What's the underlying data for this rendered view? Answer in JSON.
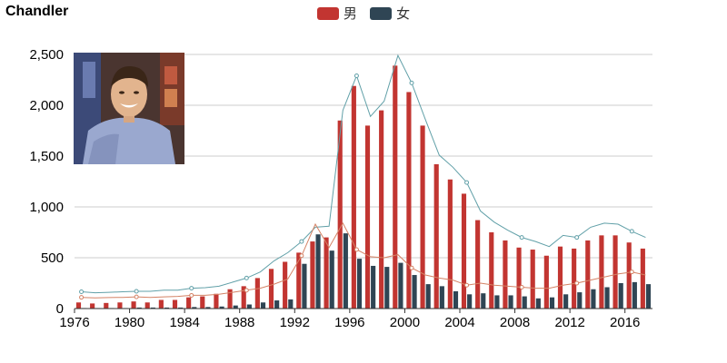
{
  "chart_data": {
    "type": "bar",
    "title": "Chandler",
    "xlabel": "",
    "ylabel": "",
    "x_range": [
      1976,
      2017
    ],
    "ylim": [
      0,
      2500
    ],
    "y_ticks": [
      "0",
      "500",
      "1,000",
      "1,500",
      "2,000",
      "2,500"
    ],
    "y_tick_values": [
      0,
      500,
      1000,
      1500,
      2000,
      2500
    ],
    "x_ticks": [
      "1976",
      "1980",
      "1984",
      "1988",
      "1992",
      "1996",
      "2000",
      "2004",
      "2008",
      "2012",
      "2016"
    ],
    "x_tick_values": [
      1976,
      1980,
      1984,
      1988,
      1992,
      1996,
      2000,
      2004,
      2008,
      2012,
      2016
    ],
    "grid": true,
    "legend_position": "top-center",
    "years": [
      1976,
      1977,
      1978,
      1979,
      1980,
      1981,
      1982,
      1983,
      1984,
      1985,
      1986,
      1987,
      1988,
      1989,
      1990,
      1991,
      1992,
      1993,
      1994,
      1995,
      1996,
      1997,
      1998,
      1999,
      2000,
      2001,
      2002,
      2003,
      2004,
      2005,
      2006,
      2007,
      2008,
      2009,
      2010,
      2011,
      2012,
      2013,
      2014,
      2015,
      2016,
      2017
    ],
    "series": [
      {
        "name": "男",
        "type": "bar",
        "color": "#c23531",
        "values": [
          60,
          50,
          55,
          60,
          70,
          60,
          85,
          85,
          110,
          120,
          145,
          190,
          220,
          300,
          390,
          460,
          550,
          660,
          700,
          1850,
          2190,
          1800,
          1950,
          2390,
          2130,
          1800,
          1420,
          1270,
          1130,
          870,
          750,
          670,
          600,
          580,
          520,
          610,
          590,
          670,
          720,
          720,
          650,
          590
        ]
      },
      {
        "name": "女",
        "type": "bar",
        "color": "#2f4554",
        "values": [
          5,
          5,
          5,
          5,
          10,
          10,
          10,
          10,
          15,
          15,
          20,
          30,
          40,
          60,
          80,
          90,
          440,
          730,
          570,
          740,
          490,
          420,
          410,
          450,
          330,
          240,
          220,
          170,
          140,
          150,
          130,
          130,
          120,
          100,
          110,
          140,
          160,
          190,
          210,
          250,
          260,
          240
        ]
      },
      {
        "name": "",
        "type": "line",
        "color": "#61a0a8",
        "values": [
          165,
          155,
          160,
          165,
          170,
          170,
          180,
          180,
          200,
          205,
          220,
          260,
          300,
          360,
          470,
          550,
          660,
          800,
          810,
          1950,
          2290,
          1890,
          2040,
          2490,
          2220,
          1860,
          1510,
          1390,
          1240,
          960,
          850,
          770,
          700,
          660,
          610,
          720,
          700,
          800,
          840,
          830,
          760,
          700
        ]
      },
      {
        "name": "",
        "type": "line",
        "color": "#d48265",
        "values": [
          110,
          105,
          108,
          110,
          115,
          110,
          115,
          120,
          130,
          130,
          140,
          160,
          180,
          200,
          240,
          290,
          520,
          830,
          600,
          840,
          580,
          510,
          500,
          530,
          400,
          330,
          300,
          280,
          230,
          250,
          230,
          220,
          210,
          200,
          200,
          230,
          250,
          280,
          310,
          340,
          360,
          330
        ]
      }
    ]
  }
}
